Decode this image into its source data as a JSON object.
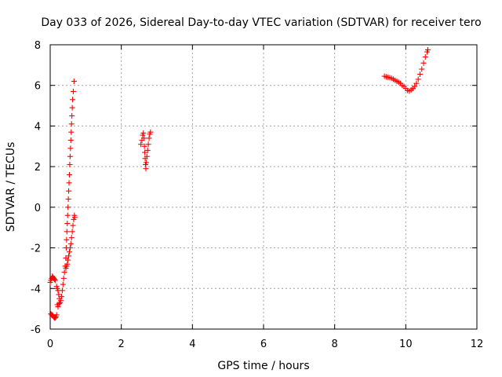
{
  "chart_data": {
    "type": "scatter",
    "title": "Day 033 of 2026, Sidereal Day-to-day VTEC variation (SDTVAR) for receiver tero",
    "xlabel": "GPS time / hours",
    "ylabel": "SDTVAR / TECUs",
    "xlim": [
      0,
      12
    ],
    "ylim": [
      -6,
      8
    ],
    "xticks": [
      0,
      2,
      4,
      6,
      8,
      10,
      12
    ],
    "yticks": [
      -6,
      -4,
      -2,
      0,
      2,
      4,
      6,
      8
    ],
    "grid": true,
    "marker": "+",
    "marker_color": "#ff0000",
    "series": [
      {
        "name": "SDTVAR",
        "color": "#ff0000",
        "points": [
          [
            0.0,
            -3.7
          ],
          [
            0.02,
            -3.6
          ],
          [
            0.04,
            -3.5
          ],
          [
            0.06,
            -3.4
          ],
          [
            0.08,
            -3.45
          ],
          [
            0.1,
            -3.5
          ],
          [
            0.12,
            -3.55
          ],
          [
            0.14,
            -3.6
          ],
          [
            0.02,
            -5.25
          ],
          [
            0.04,
            -5.3
          ],
          [
            0.06,
            -5.3
          ],
          [
            0.08,
            -5.35
          ],
          [
            0.1,
            -5.4
          ],
          [
            0.12,
            -5.45
          ],
          [
            0.14,
            -5.45
          ],
          [
            0.16,
            -5.4
          ],
          [
            0.18,
            -5.3
          ],
          [
            0.18,
            -3.9
          ],
          [
            0.2,
            -4.0
          ],
          [
            0.22,
            -4.1
          ],
          [
            0.24,
            -4.3
          ],
          [
            0.26,
            -4.5
          ],
          [
            0.28,
            -4.7
          ],
          [
            0.2,
            -4.8
          ],
          [
            0.22,
            -4.9
          ],
          [
            0.25,
            -4.75
          ],
          [
            0.3,
            -4.6
          ],
          [
            0.32,
            -4.4
          ],
          [
            0.34,
            -4.1
          ],
          [
            0.36,
            -3.8
          ],
          [
            0.38,
            -3.5
          ],
          [
            0.4,
            -3.2
          ],
          [
            0.42,
            -2.9
          ],
          [
            0.44,
            -2.5
          ],
          [
            0.45,
            -2.0
          ],
          [
            0.46,
            -1.6
          ],
          [
            0.47,
            -1.2
          ],
          [
            0.48,
            -0.8
          ],
          [
            0.49,
            -0.4
          ],
          [
            0.5,
            0.0
          ],
          [
            0.51,
            0.4
          ],
          [
            0.52,
            0.8
          ],
          [
            0.53,
            1.2
          ],
          [
            0.54,
            1.6
          ],
          [
            0.55,
            2.1
          ],
          [
            0.56,
            2.5
          ],
          [
            0.57,
            2.9
          ],
          [
            0.58,
            3.3
          ],
          [
            0.59,
            3.7
          ],
          [
            0.6,
            4.1
          ],
          [
            0.61,
            4.5
          ],
          [
            0.62,
            4.9
          ],
          [
            0.63,
            5.3
          ],
          [
            0.65,
            5.7
          ],
          [
            0.67,
            6.2
          ],
          [
            0.44,
            -3.0
          ],
          [
            0.46,
            -2.9
          ],
          [
            0.48,
            -2.8
          ],
          [
            0.5,
            -2.6
          ],
          [
            0.52,
            -2.4
          ],
          [
            0.54,
            -2.2
          ],
          [
            0.56,
            -2.0
          ],
          [
            0.58,
            -1.8
          ],
          [
            0.6,
            -1.5
          ],
          [
            0.62,
            -1.2
          ],
          [
            0.64,
            -0.9
          ],
          [
            0.66,
            -0.6
          ],
          [
            0.68,
            -0.4
          ],
          [
            0.69,
            -0.5
          ],
          [
            2.55,
            3.1
          ],
          [
            2.58,
            3.3
          ],
          [
            2.6,
            3.55
          ],
          [
            2.62,
            3.65
          ],
          [
            2.64,
            3.4
          ],
          [
            2.65,
            3.0
          ],
          [
            2.66,
            2.7
          ],
          [
            2.67,
            2.4
          ],
          [
            2.68,
            2.1
          ],
          [
            2.69,
            1.9
          ],
          [
            2.7,
            2.2
          ],
          [
            2.72,
            2.5
          ],
          [
            2.74,
            2.8
          ],
          [
            2.76,
            3.1
          ],
          [
            2.78,
            3.4
          ],
          [
            2.8,
            3.6
          ],
          [
            2.82,
            3.7
          ],
          [
            9.4,
            6.45
          ],
          [
            9.45,
            6.42
          ],
          [
            9.5,
            6.4
          ],
          [
            9.55,
            6.38
          ],
          [
            9.6,
            6.35
          ],
          [
            9.65,
            6.3
          ],
          [
            9.7,
            6.25
          ],
          [
            9.75,
            6.2
          ],
          [
            9.8,
            6.15
          ],
          [
            9.85,
            6.1
          ],
          [
            9.9,
            6.0
          ],
          [
            9.95,
            5.95
          ],
          [
            10.0,
            5.85
          ],
          [
            10.05,
            5.75
          ],
          [
            10.1,
            5.72
          ],
          [
            10.15,
            5.78
          ],
          [
            10.2,
            5.85
          ],
          [
            10.25,
            5.95
          ],
          [
            10.3,
            6.1
          ],
          [
            10.35,
            6.3
          ],
          [
            10.4,
            6.55
          ],
          [
            10.45,
            6.8
          ],
          [
            10.5,
            7.1
          ],
          [
            10.55,
            7.4
          ],
          [
            10.6,
            7.65
          ],
          [
            10.62,
            7.75
          ]
        ]
      }
    ]
  }
}
